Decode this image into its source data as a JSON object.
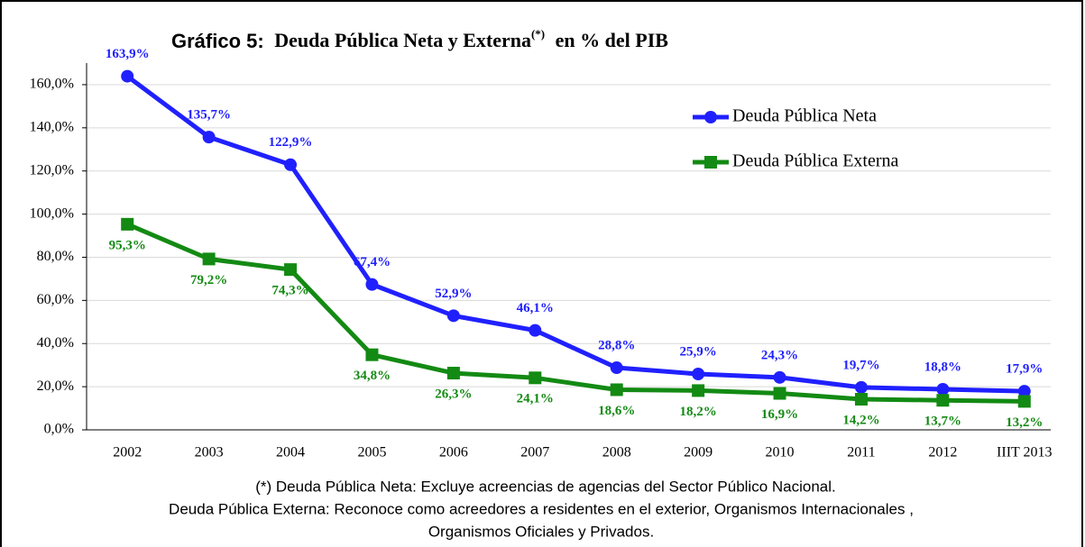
{
  "chart_data": {
    "type": "line",
    "title": [
      "Gráfico 5:",
      "Deuda Pública Neta y Externa",
      "(*)",
      "en % del PIB"
    ],
    "categories": [
      "2002",
      "2003",
      "2004",
      "2005",
      "2006",
      "2007",
      "2008",
      "2009",
      "2010",
      "2011",
      "2012",
      "IIIT 2013"
    ],
    "series": [
      {
        "name": "Deuda Pública Neta",
        "color": "#2020ff",
        "values": [
          163.9,
          135.7,
          122.9,
          67.4,
          52.9,
          46.1,
          28.8,
          25.9,
          24.3,
          19.7,
          18.8,
          17.9
        ],
        "value_labels": [
          "163,9%",
          "135,7%",
          "122,9%",
          "67,4%",
          "52,9%",
          "46,1%",
          "28,8%",
          "25,9%",
          "24,3%",
          "19,7%",
          "18,8%",
          "17,9%"
        ]
      },
      {
        "name": "Deuda Pública Externa",
        "color": "#138a13",
        "values": [
          95.3,
          79.2,
          74.3,
          34.8,
          26.3,
          24.1,
          18.6,
          18.2,
          16.9,
          14.2,
          13.7,
          13.2
        ],
        "value_labels": [
          "95,3%",
          "79,2%",
          "74,3%",
          "34,8%",
          "26,3%",
          "24,1%",
          "18,6%",
          "18,2%",
          "16,9%",
          "14,2%",
          "13,7%",
          "13,2%"
        ]
      }
    ],
    "ylim": [
      0,
      170
    ],
    "yticks": [
      {
        "value": 0,
        "label": "0,0%"
      },
      {
        "value": 20,
        "label": "20,0%"
      },
      {
        "value": 40,
        "label": "40,0%"
      },
      {
        "value": 60,
        "label": "60,0%"
      },
      {
        "value": 80,
        "label": "80,0%"
      },
      {
        "value": 100,
        "label": "100,0%"
      },
      {
        "value": 120,
        "label": "120,0%"
      },
      {
        "value": 140,
        "label": "140,0%"
      },
      {
        "value": 160,
        "label": "160,0%"
      }
    ],
    "grid": true,
    "legend": "top-right",
    "footnote": [
      "(*) Deuda Pública Neta: Excluye acreencias de agencias del Sector Público Nacional.",
      "Deuda Pública Externa: Reconoce como acreedores a residentes en el exterior, Organismos Internacionales ,",
      "Organismos Oficiales y Privados."
    ]
  }
}
